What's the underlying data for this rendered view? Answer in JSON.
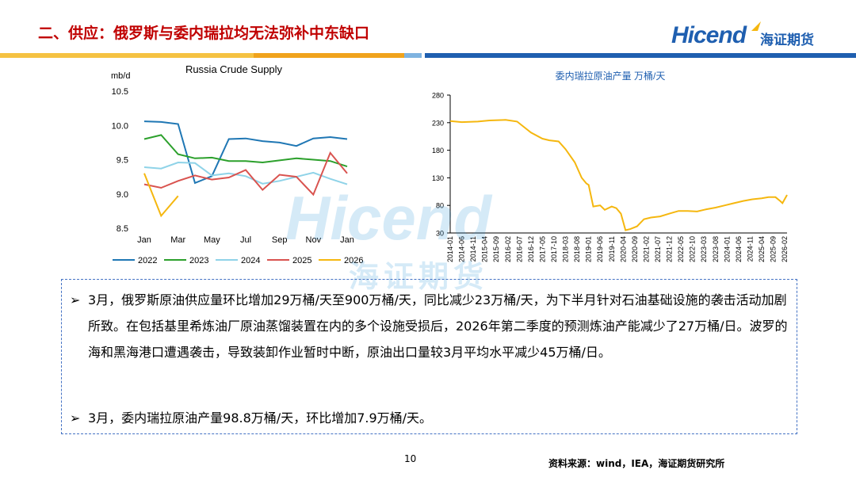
{
  "header": {
    "title": "二、供应：俄罗斯与委内瑞拉均无法弥补中东缺口",
    "logo_en": "Hicend",
    "logo_cn": "海证期货"
  },
  "colors": {
    "brand": "#1f5fb0",
    "title": "#c00000",
    "band_yellow": "#f5c242",
    "band_blue": "#1f5fb0"
  },
  "watermark": {
    "en": "Hicend",
    "cn": "海证期货"
  },
  "charts": [
    {
      "type": "line",
      "title": "Russia Crude Supply",
      "ylabel": "mb/d",
      "ylim": [
        8.5,
        10.5
      ],
      "yticks": [
        "10.5",
        "10.0",
        "9.5",
        "9.0",
        "8.5"
      ],
      "xticks": [
        "Jan",
        "Mar",
        "May",
        "Jul",
        "Sep",
        "Nov",
        "Jan"
      ],
      "legend_position": "bottom",
      "series": [
        {
          "name": "2022",
          "color": "#1f77b4",
          "values": [
            10.06,
            10.05,
            10.02,
            9.16,
            9.26,
            9.8,
            9.81,
            9.77,
            9.75,
            9.7,
            9.81,
            9.83,
            9.8
          ]
        },
        {
          "name": "2023",
          "color": "#2ca02c",
          "values": [
            9.8,
            9.86,
            9.58,
            9.52,
            9.53,
            9.48,
            9.48,
            9.46,
            9.49,
            9.52,
            9.5,
            9.48,
            9.4
          ]
        },
        {
          "name": "2024",
          "color": "#8fd3e8",
          "values": [
            9.39,
            9.37,
            9.46,
            9.45,
            9.27,
            9.3,
            9.26,
            9.15,
            9.19,
            9.25,
            9.31,
            9.22,
            9.14
          ]
        },
        {
          "name": "2025",
          "color": "#d9534f",
          "values": [
            9.14,
            9.09,
            9.19,
            9.27,
            9.21,
            9.24,
            9.35,
            9.06,
            9.28,
            9.25,
            8.99,
            9.6,
            9.3
          ]
        },
        {
          "name": "2026",
          "color": "#f5b70f",
          "values": [
            9.3,
            8.68,
            8.97
          ]
        }
      ]
    },
    {
      "type": "line",
      "title": "委内瑞拉原油产量  万桶/天",
      "ylim": [
        30,
        280
      ],
      "yticks": [
        "280",
        "230",
        "180",
        "130",
        "80",
        "30"
      ],
      "xticks": [
        "2014-01",
        "2014-06",
        "2014-11",
        "2015-04",
        "2015-09",
        "2016-02",
        "2016-07",
        "2016-12",
        "2017-05",
        "2017-10",
        "2018-03",
        "2018-08",
        "2019-01",
        "2019-06",
        "2019-11",
        "2020-04",
        "2020-09",
        "2021-02",
        "2021-07",
        "2021-12",
        "2022-05",
        "2022-10",
        "2023-03",
        "2023-08",
        "2024-01",
        "2024-06",
        "2024-11",
        "2025-04",
        "2025-09",
        "2026-02"
      ],
      "series": [
        {
          "color": "#f5b70f",
          "x": [
            "2014-01",
            "2014-06",
            "2015-01",
            "2015-06",
            "2016-01",
            "2016-06",
            "2016-12",
            "2017-05",
            "2017-08",
            "2017-12",
            "2018-03",
            "2018-07",
            "2018-10",
            "2018-12",
            "2019-01",
            "2019-03",
            "2019-06",
            "2019-08",
            "2019-11",
            "2020-01",
            "2020-03",
            "2020-05",
            "2020-07",
            "2020-10",
            "2021-01",
            "2021-04",
            "2021-08",
            "2021-12",
            "2022-04",
            "2022-08",
            "2022-12",
            "2023-04",
            "2023-08",
            "2023-12",
            "2024-04",
            "2024-08",
            "2024-12",
            "2025-04",
            "2025-07",
            "2025-10",
            "2025-12",
            "2026-01",
            "2026-03"
          ],
          "values": [
            233,
            231,
            232,
            234,
            235,
            232,
            212,
            201,
            198,
            196,
            182,
            158,
            130,
            120,
            117,
            78,
            80,
            72,
            78,
            75,
            65,
            35,
            37,
            42,
            55,
            58,
            60,
            65,
            70,
            70,
            69,
            73,
            76,
            80,
            84,
            88,
            91,
            93,
            95,
            95,
            88,
            84,
            99
          ]
        }
      ]
    }
  ],
  "body": {
    "p1": "3月，俄罗斯原油供应量环比增加29万桶/天至900万桶/天，同比减少23万桶/天，为下半月针对石油基础设施的袭击活动加剧所致。在包括基里希炼油厂原油蒸馏装置在内的多个设施受损后，2026年第二季度的预测炼油产能减少了27万桶/日。波罗的海和黑海港口遭遇袭击，导致装卸作业暂时中断，原油出口量较3月平均水平减少45万桶/日。",
    "p2": "3月，委内瑞拉原油产量98.8万桶/天，环比增加7.9万桶/天。"
  },
  "footer": {
    "page": "10",
    "source": "资料来源：wind，IEA，海证期货研究所"
  }
}
